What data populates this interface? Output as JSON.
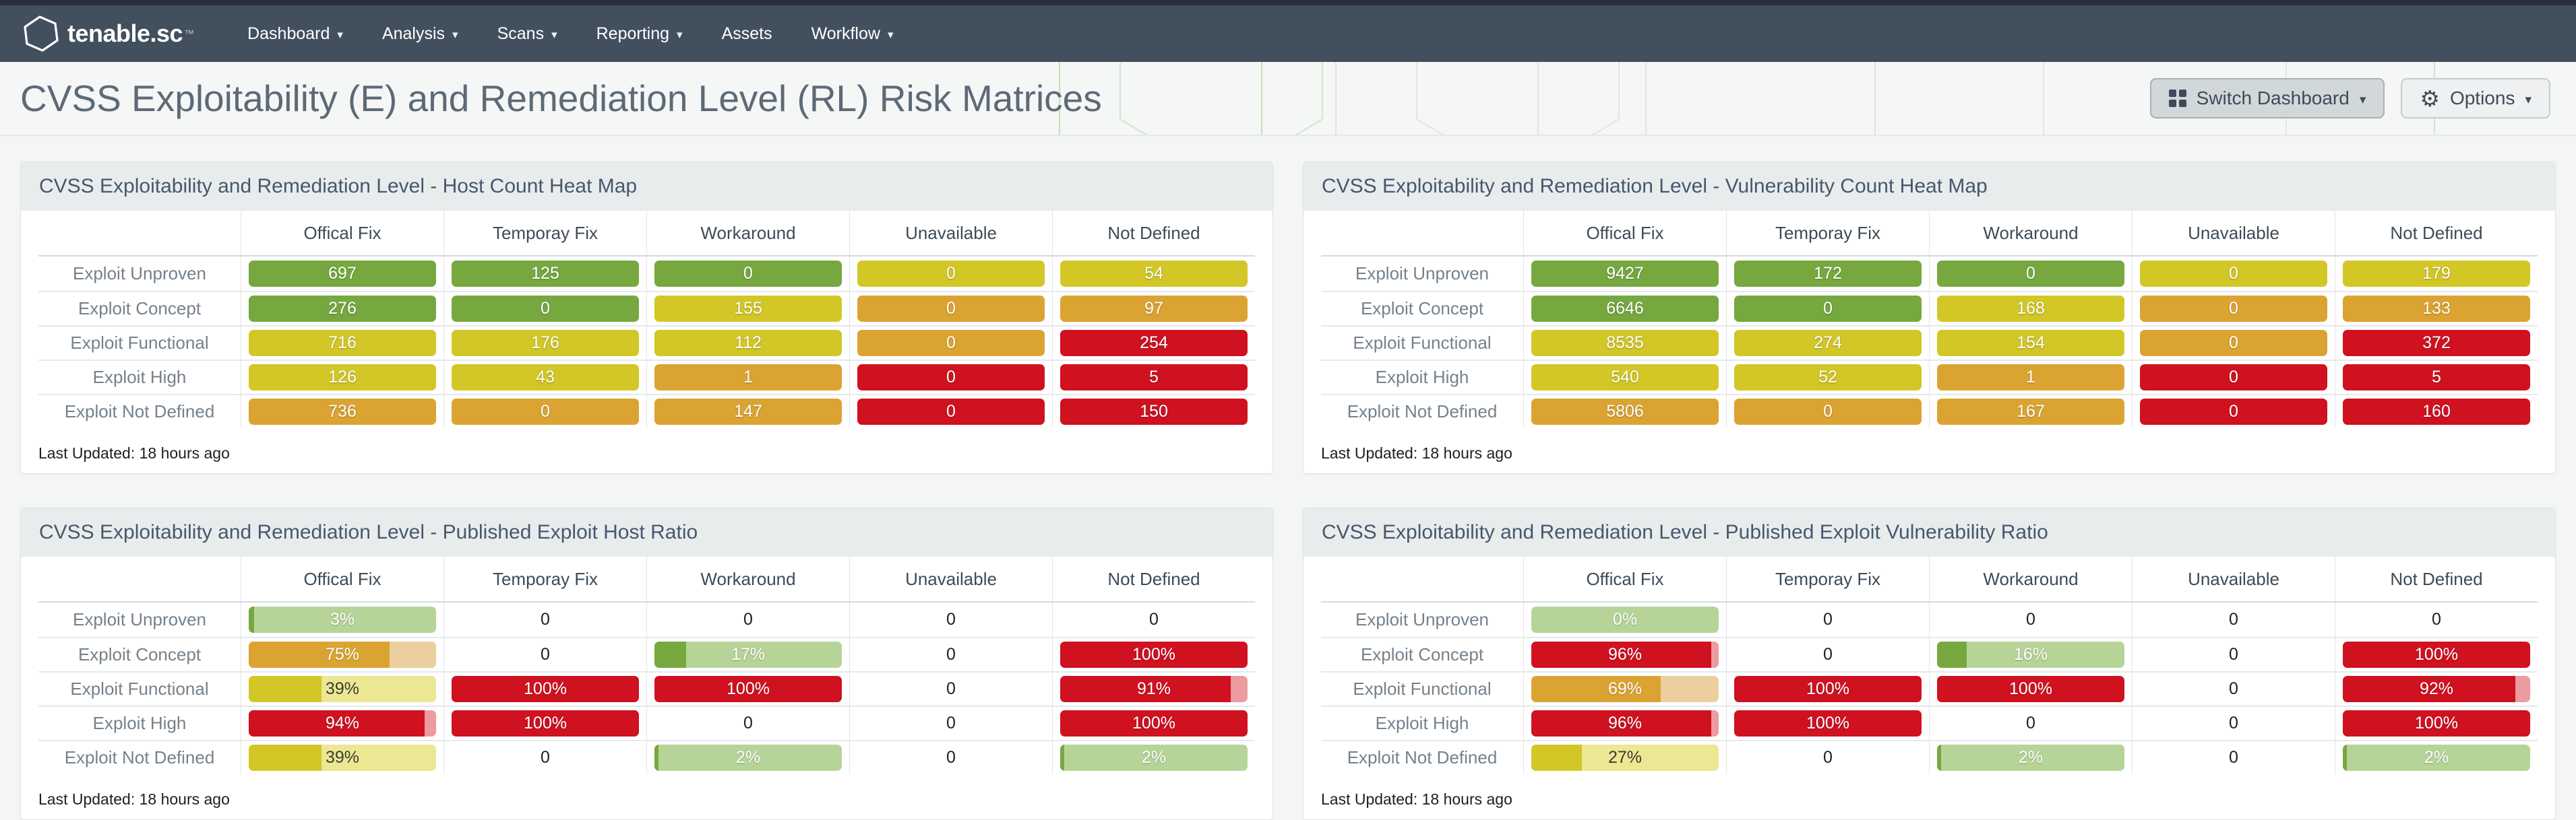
{
  "colors": {
    "navbar": "#42505e",
    "green": "#76a83f",
    "yellow": "#d2c726",
    "orange": "#dba432",
    "red": "#cf1120",
    "green_light": "#b7d498",
    "yellow_light": "#ece793",
    "orange_light": "#ebcf9e",
    "red_light": "#ec9ba0"
  },
  "nav": {
    "brand": "tenable.sc",
    "trademark": "™",
    "items": [
      {
        "label": "Dashboard",
        "caret": true
      },
      {
        "label": "Analysis",
        "caret": true
      },
      {
        "label": "Scans",
        "caret": true
      },
      {
        "label": "Reporting",
        "caret": true
      },
      {
        "label": "Assets",
        "caret": false
      },
      {
        "label": "Workflow",
        "caret": true
      }
    ]
  },
  "header": {
    "title": "CVSS Exploitability (E) and Remediation Level (RL) Risk Matrices",
    "switch_dashboard_label": "Switch Dashboard",
    "options_label": "Options"
  },
  "panels": [
    {
      "title": "CVSS Exploitability and Remediation Level - Host Count Heat Map",
      "type": "heatmap",
      "columns": [
        "Offical Fix",
        "Temporay Fix",
        "Workaround",
        "Unavailable",
        "Not Defined"
      ],
      "rows": [
        {
          "label": "Exploit Unproven",
          "cells": [
            {
              "text": "697",
              "color": "green"
            },
            {
              "text": "125",
              "color": "green"
            },
            {
              "text": "0",
              "color": "green"
            },
            {
              "text": "0",
              "color": "yellow"
            },
            {
              "text": "54",
              "color": "yellow"
            }
          ]
        },
        {
          "label": "Exploit Concept",
          "cells": [
            {
              "text": "276",
              "color": "green"
            },
            {
              "text": "0",
              "color": "green"
            },
            {
              "text": "155",
              "color": "yellow"
            },
            {
              "text": "0",
              "color": "orange"
            },
            {
              "text": "97",
              "color": "orange"
            }
          ]
        },
        {
          "label": "Exploit Functional",
          "cells": [
            {
              "text": "716",
              "color": "yellow"
            },
            {
              "text": "176",
              "color": "yellow"
            },
            {
              "text": "112",
              "color": "yellow"
            },
            {
              "text": "0",
              "color": "orange"
            },
            {
              "text": "254",
              "color": "red"
            }
          ]
        },
        {
          "label": "Exploit High",
          "cells": [
            {
              "text": "126",
              "color": "yellow"
            },
            {
              "text": "43",
              "color": "yellow"
            },
            {
              "text": "1",
              "color": "orange"
            },
            {
              "text": "0",
              "color": "red"
            },
            {
              "text": "5",
              "color": "red"
            }
          ]
        },
        {
          "label": "Exploit Not Defined",
          "cells": [
            {
              "text": "736",
              "color": "orange"
            },
            {
              "text": "0",
              "color": "orange"
            },
            {
              "text": "147",
              "color": "orange"
            },
            {
              "text": "0",
              "color": "red"
            },
            {
              "text": "150",
              "color": "red"
            }
          ]
        }
      ],
      "last_updated": "Last Updated: 18 hours ago"
    },
    {
      "title": "CVSS Exploitability and Remediation Level - Vulnerability Count Heat Map",
      "type": "heatmap",
      "columns": [
        "Offical Fix",
        "Temporay Fix",
        "Workaround",
        "Unavailable",
        "Not Defined"
      ],
      "rows": [
        {
          "label": "Exploit Unproven",
          "cells": [
            {
              "text": "9427",
              "color": "green"
            },
            {
              "text": "172",
              "color": "green"
            },
            {
              "text": "0",
              "color": "green"
            },
            {
              "text": "0",
              "color": "yellow"
            },
            {
              "text": "179",
              "color": "yellow"
            }
          ]
        },
        {
          "label": "Exploit Concept",
          "cells": [
            {
              "text": "6646",
              "color": "green"
            },
            {
              "text": "0",
              "color": "green"
            },
            {
              "text": "168",
              "color": "yellow"
            },
            {
              "text": "0",
              "color": "orange"
            },
            {
              "text": "133",
              "color": "orange"
            }
          ]
        },
        {
          "label": "Exploit Functional",
          "cells": [
            {
              "text": "8535",
              "color": "yellow"
            },
            {
              "text": "274",
              "color": "yellow"
            },
            {
              "text": "154",
              "color": "yellow"
            },
            {
              "text": "0",
              "color": "orange"
            },
            {
              "text": "372",
              "color": "red"
            }
          ]
        },
        {
          "label": "Exploit High",
          "cells": [
            {
              "text": "540",
              "color": "yellow"
            },
            {
              "text": "52",
              "color": "yellow"
            },
            {
              "text": "1",
              "color": "orange"
            },
            {
              "text": "0",
              "color": "red"
            },
            {
              "text": "5",
              "color": "red"
            }
          ]
        },
        {
          "label": "Exploit Not Defined",
          "cells": [
            {
              "text": "5806",
              "color": "orange"
            },
            {
              "text": "0",
              "color": "orange"
            },
            {
              "text": "167",
              "color": "orange"
            },
            {
              "text": "0",
              "color": "red"
            },
            {
              "text": "160",
              "color": "red"
            }
          ]
        }
      ],
      "last_updated": "Last Updated: 18 hours ago"
    },
    {
      "title": "CVSS Exploitability and Remediation Level - Published Exploit Host Ratio",
      "type": "ratio",
      "columns": [
        "Offical Fix",
        "Temporay Fix",
        "Workaround",
        "Unavailable",
        "Not Defined"
      ],
      "rows": [
        {
          "label": "Exploit Unproven",
          "cells": [
            {
              "text": "3%",
              "color": "green",
              "fill": 3
            },
            {
              "text": "0",
              "color": "none"
            },
            {
              "text": "0",
              "color": "none"
            },
            {
              "text": "0",
              "color": "none"
            },
            {
              "text": "0",
              "color": "none"
            }
          ]
        },
        {
          "label": "Exploit Concept",
          "cells": [
            {
              "text": "75%",
              "color": "orange",
              "fill": 75
            },
            {
              "text": "0",
              "color": "none"
            },
            {
              "text": "17%",
              "color": "green",
              "fill": 17
            },
            {
              "text": "0",
              "color": "none"
            },
            {
              "text": "100%",
              "color": "red",
              "fill": 100
            }
          ]
        },
        {
          "label": "Exploit Functional",
          "cells": [
            {
              "text": "39%",
              "color": "yellow",
              "fill": 39
            },
            {
              "text": "100%",
              "color": "red",
              "fill": 100
            },
            {
              "text": "100%",
              "color": "red",
              "fill": 100
            },
            {
              "text": "0",
              "color": "none"
            },
            {
              "text": "91%",
              "color": "red",
              "fill": 91
            }
          ]
        },
        {
          "label": "Exploit High",
          "cells": [
            {
              "text": "94%",
              "color": "red",
              "fill": 94
            },
            {
              "text": "100%",
              "color": "red",
              "fill": 100
            },
            {
              "text": "0",
              "color": "none"
            },
            {
              "text": "0",
              "color": "none"
            },
            {
              "text": "100%",
              "color": "red",
              "fill": 100
            }
          ]
        },
        {
          "label": "Exploit Not Defined",
          "cells": [
            {
              "text": "39%",
              "color": "yellow",
              "fill": 39
            },
            {
              "text": "0",
              "color": "none"
            },
            {
              "text": "2%",
              "color": "green",
              "fill": 2
            },
            {
              "text": "0",
              "color": "none"
            },
            {
              "text": "2%",
              "color": "green",
              "fill": 2
            }
          ]
        }
      ],
      "last_updated": "Last Updated: 18 hours ago"
    },
    {
      "title": "CVSS Exploitability and Remediation Level - Published Exploit Vulnerability Ratio",
      "type": "ratio",
      "columns": [
        "Offical Fix",
        "Temporay Fix",
        "Workaround",
        "Unavailable",
        "Not Defined"
      ],
      "rows": [
        {
          "label": "Exploit Unproven",
          "cells": [
            {
              "text": "0%",
              "color": "green",
              "fill": 0
            },
            {
              "text": "0",
              "color": "none"
            },
            {
              "text": "0",
              "color": "none"
            },
            {
              "text": "0",
              "color": "none"
            },
            {
              "text": "0",
              "color": "none"
            }
          ]
        },
        {
          "label": "Exploit Concept",
          "cells": [
            {
              "text": "96%",
              "color": "red",
              "fill": 96
            },
            {
              "text": "0",
              "color": "none"
            },
            {
              "text": "16%",
              "color": "green",
              "fill": 16
            },
            {
              "text": "0",
              "color": "none"
            },
            {
              "text": "100%",
              "color": "red",
              "fill": 100
            }
          ]
        },
        {
          "label": "Exploit Functional",
          "cells": [
            {
              "text": "69%",
              "color": "orange",
              "fill": 69
            },
            {
              "text": "100%",
              "color": "red",
              "fill": 100
            },
            {
              "text": "100%",
              "color": "red",
              "fill": 100
            },
            {
              "text": "0",
              "color": "none"
            },
            {
              "text": "92%",
              "color": "red",
              "fill": 92
            }
          ]
        },
        {
          "label": "Exploit High",
          "cells": [
            {
              "text": "96%",
              "color": "red",
              "fill": 96
            },
            {
              "text": "100%",
              "color": "red",
              "fill": 100
            },
            {
              "text": "0",
              "color": "none"
            },
            {
              "text": "0",
              "color": "none"
            },
            {
              "text": "100%",
              "color": "red",
              "fill": 100
            }
          ]
        },
        {
          "label": "Exploit Not Defined",
          "cells": [
            {
              "text": "27%",
              "color": "yellow",
              "fill": 27
            },
            {
              "text": "0",
              "color": "none"
            },
            {
              "text": "2%",
              "color": "green",
              "fill": 2
            },
            {
              "text": "0",
              "color": "none"
            },
            {
              "text": "2%",
              "color": "green",
              "fill": 2
            }
          ]
        }
      ],
      "last_updated": "Last Updated: 18 hours ago"
    }
  ]
}
